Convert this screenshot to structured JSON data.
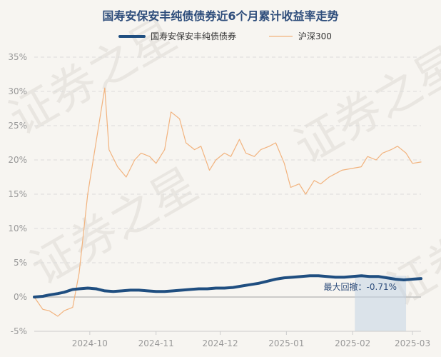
{
  "chart_data": {
    "type": "line",
    "title": "国寿安保安丰纯债债券近6个月累计收益率走势",
    "xlabel": "",
    "ylabel": "",
    "ylim": [
      -5,
      35
    ],
    "yticks": [
      35,
      30,
      25,
      20,
      15,
      10,
      5,
      0,
      -5
    ],
    "ytick_labels": [
      "35%",
      "30%",
      "25%",
      "20%",
      "15%",
      "10%",
      "5%",
      "0%",
      "-5%"
    ],
    "x_ticks": [
      {
        "label": "2024-10",
        "date": "2024-10-01"
      },
      {
        "label": "2024-11",
        "date": "2024-11-01"
      },
      {
        "label": "2024-12",
        "date": "2024-12-01"
      },
      {
        "label": "2025-01",
        "date": "2025-01-01"
      },
      {
        "label": "2025-02",
        "date": "2025-02-01"
      },
      {
        "label": "2025-03",
        "date": "2025-03-01"
      }
    ],
    "x_range": [
      "2024-09-05",
      "2025-03-05"
    ],
    "grid": "horizontal-dashed",
    "legend_position": "top-center",
    "series": [
      {
        "name": "国寿安保安丰纯债债券",
        "color": "#1f4e80",
        "points": [
          [
            "2024-09-05",
            0.0
          ],
          [
            "2024-09-09",
            0.1
          ],
          [
            "2024-09-12",
            0.3
          ],
          [
            "2024-09-16",
            0.5
          ],
          [
            "2024-09-19",
            0.7
          ],
          [
            "2024-09-23",
            1.1
          ],
          [
            "2024-09-26",
            1.2
          ],
          [
            "2024-09-30",
            1.3
          ],
          [
            "2024-10-04",
            1.2
          ],
          [
            "2024-10-08",
            0.9
          ],
          [
            "2024-10-12",
            0.8
          ],
          [
            "2024-10-16",
            0.9
          ],
          [
            "2024-10-20",
            1.0
          ],
          [
            "2024-10-24",
            1.0
          ],
          [
            "2024-10-28",
            0.9
          ],
          [
            "2024-11-01",
            0.8
          ],
          [
            "2024-11-05",
            0.8
          ],
          [
            "2024-11-09",
            0.9
          ],
          [
            "2024-11-13",
            1.0
          ],
          [
            "2024-11-17",
            1.1
          ],
          [
            "2024-11-21",
            1.2
          ],
          [
            "2024-11-25",
            1.2
          ],
          [
            "2024-11-29",
            1.3
          ],
          [
            "2024-12-03",
            1.3
          ],
          [
            "2024-12-07",
            1.4
          ],
          [
            "2024-12-11",
            1.6
          ],
          [
            "2024-12-15",
            1.8
          ],
          [
            "2024-12-19",
            2.0
          ],
          [
            "2024-12-23",
            2.3
          ],
          [
            "2024-12-27",
            2.6
          ],
          [
            "2024-12-31",
            2.8
          ],
          [
            "2025-01-04",
            2.9
          ],
          [
            "2025-01-08",
            3.0
          ],
          [
            "2025-01-12",
            3.1
          ],
          [
            "2025-01-16",
            3.1
          ],
          [
            "2025-01-20",
            3.0
          ],
          [
            "2025-01-24",
            2.9
          ],
          [
            "2025-01-28",
            2.9
          ],
          [
            "2025-02-01",
            3.0
          ],
          [
            "2025-02-05",
            3.1
          ],
          [
            "2025-02-09",
            3.0
          ],
          [
            "2025-02-13",
            3.0
          ],
          [
            "2025-02-17",
            2.8
          ],
          [
            "2025-02-21",
            2.6
          ],
          [
            "2025-02-25",
            2.5
          ],
          [
            "2025-03-01",
            2.6
          ],
          [
            "2025-03-05",
            2.7
          ]
        ]
      },
      {
        "name": "沪深300",
        "color": "#f2b37e",
        "points": [
          [
            "2024-09-05",
            0.0
          ],
          [
            "2024-09-09",
            -1.8
          ],
          [
            "2024-09-12",
            -2.0
          ],
          [
            "2024-09-16",
            -2.8
          ],
          [
            "2024-09-19",
            -2.0
          ],
          [
            "2024-09-23",
            -1.5
          ],
          [
            "2024-09-26",
            3.5
          ],
          [
            "2024-09-30",
            15.0
          ],
          [
            "2024-10-08",
            30.5
          ],
          [
            "2024-10-10",
            21.5
          ],
          [
            "2024-10-14",
            19.0
          ],
          [
            "2024-10-18",
            17.5
          ],
          [
            "2024-10-22",
            20.0
          ],
          [
            "2024-10-25",
            21.0
          ],
          [
            "2024-10-29",
            20.5
          ],
          [
            "2024-11-01",
            19.5
          ],
          [
            "2024-11-05",
            21.5
          ],
          [
            "2024-11-08",
            27.0
          ],
          [
            "2024-11-12",
            26.0
          ],
          [
            "2024-11-15",
            22.5
          ],
          [
            "2024-11-19",
            21.5
          ],
          [
            "2024-11-22",
            22.0
          ],
          [
            "2024-11-26",
            18.5
          ],
          [
            "2024-11-29",
            20.0
          ],
          [
            "2024-12-03",
            21.0
          ],
          [
            "2024-12-06",
            20.5
          ],
          [
            "2024-12-10",
            23.0
          ],
          [
            "2024-12-13",
            21.0
          ],
          [
            "2024-12-17",
            20.5
          ],
          [
            "2024-12-20",
            21.5
          ],
          [
            "2024-12-24",
            22.0
          ],
          [
            "2024-12-27",
            22.5
          ],
          [
            "2024-12-31",
            19.5
          ],
          [
            "2025-01-03",
            16.0
          ],
          [
            "2025-01-07",
            16.5
          ],
          [
            "2025-01-10",
            15.0
          ],
          [
            "2025-01-14",
            17.0
          ],
          [
            "2025-01-17",
            16.5
          ],
          [
            "2025-01-21",
            17.5
          ],
          [
            "2025-01-24",
            18.0
          ],
          [
            "2025-01-27",
            18.5
          ],
          [
            "2025-02-05",
            19.0
          ],
          [
            "2025-02-08",
            20.5
          ],
          [
            "2025-02-12",
            20.0
          ],
          [
            "2025-02-15",
            21.0
          ],
          [
            "2025-02-19",
            21.5
          ],
          [
            "2025-02-22",
            22.0
          ],
          [
            "2025-02-26",
            21.0
          ],
          [
            "2025-03-01",
            19.5
          ],
          [
            "2025-03-05",
            19.7
          ]
        ]
      }
    ],
    "annotation": {
      "text": "最大回撤：-0.71%",
      "shade_start": "2025-02-02",
      "shade_end": "2025-02-26",
      "shade_color": "#c5d3e4"
    },
    "watermark": "证券之星"
  }
}
